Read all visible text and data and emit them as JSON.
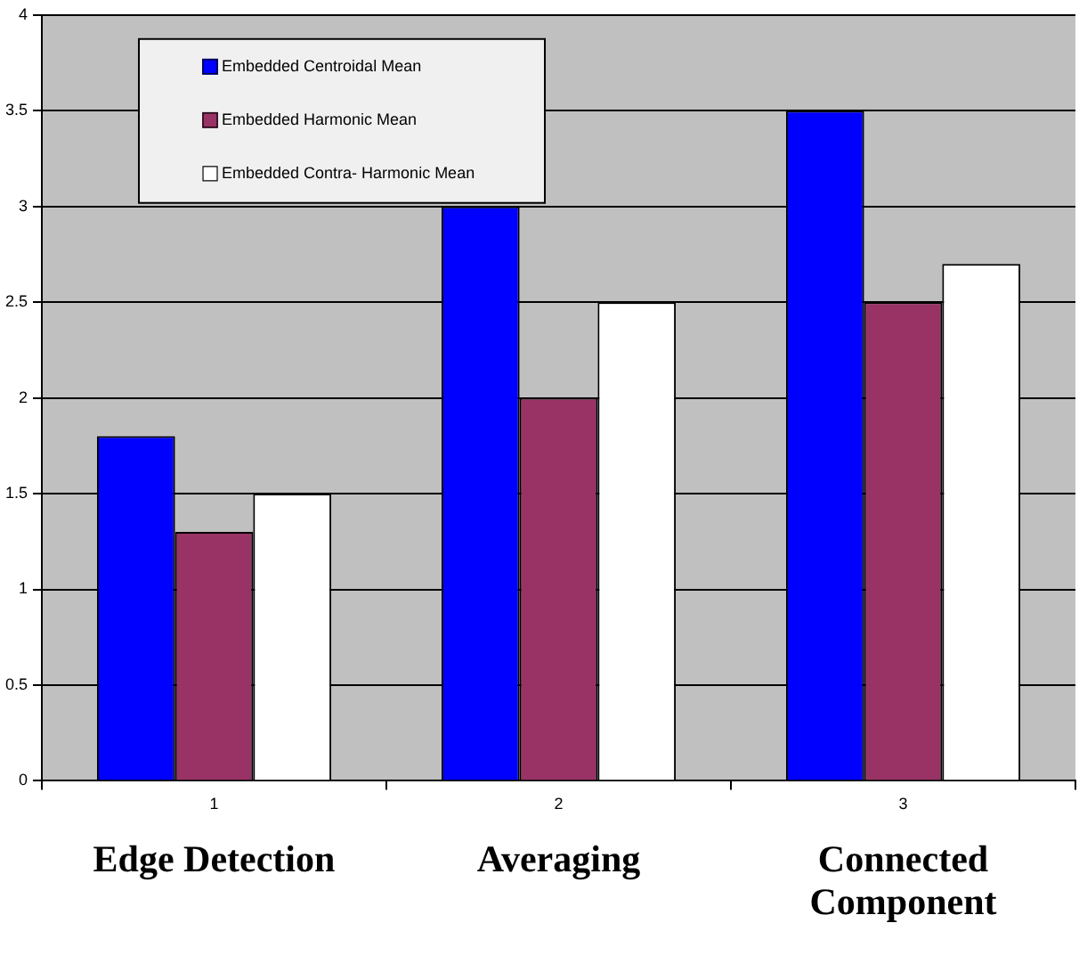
{
  "chart_data": {
    "type": "bar",
    "categories": [
      "1",
      "2",
      "3"
    ],
    "series": [
      {
        "name": "Embedded Centroidal Mean",
        "color": "#0000ff",
        "values": [
          1.8,
          3,
          3.5
        ]
      },
      {
        "name": "Embedded Harmonic Mean",
        "color": "#993366",
        "values": [
          1.3,
          2,
          2.5
        ]
      },
      {
        "name": "Embedded Contra- Harmonic Mean",
        "color": "#ffffff",
        "values": [
          1.5,
          2.5,
          2.7
        ]
      }
    ],
    "ylim": [
      0,
      4
    ],
    "yticks": [
      0,
      0.5,
      1,
      1.5,
      2,
      2.5,
      3,
      3.5,
      4
    ],
    "grid": "y",
    "legend": "top left",
    "annotations": [
      "Edge Detection",
      "Averaging",
      "Connected Component"
    ]
  }
}
